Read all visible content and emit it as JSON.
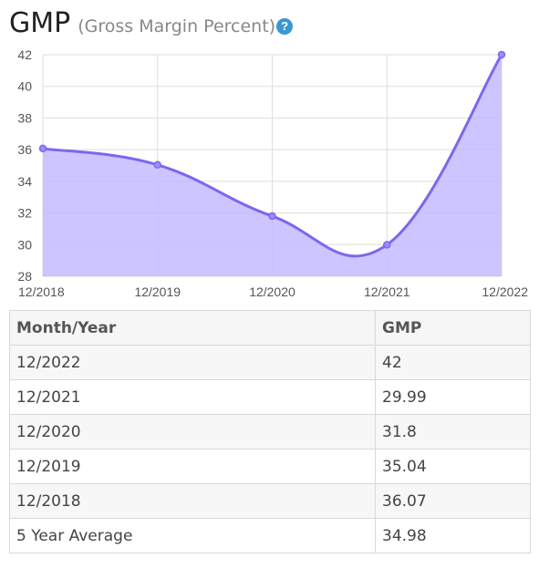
{
  "header": {
    "title": "GMP",
    "subtitle": "(Gross Margin Percent)",
    "help_icon": "question-circle-icon",
    "help_symbol": "?"
  },
  "colors": {
    "line": "#7b68ee",
    "fill": "#c4bbff",
    "point": "#9d8dfa",
    "help": "#3a97d4",
    "grid": "#dddddd"
  },
  "chart_data": {
    "type": "area",
    "x": [
      "12/2018",
      "12/2019",
      "12/2020",
      "12/2021",
      "12/2022"
    ],
    "series": [
      {
        "values": [
          36.07,
          35.04,
          31.8,
          29.99,
          42
        ]
      }
    ],
    "yticks": [
      28,
      30,
      32,
      34,
      36,
      38,
      40,
      42
    ],
    "ylim": [
      28,
      42
    ],
    "grid": true,
    "title": "",
    "xlabel": "",
    "ylabel": ""
  },
  "table": {
    "headers": [
      "Month/Year",
      "GMP"
    ],
    "rows": [
      [
        "12/2022",
        "42"
      ],
      [
        "12/2021",
        "29.99"
      ],
      [
        "12/2020",
        "31.8"
      ],
      [
        "12/2019",
        "35.04"
      ],
      [
        "12/2018",
        "36.07"
      ],
      [
        "5 Year Average",
        "34.98"
      ]
    ]
  }
}
